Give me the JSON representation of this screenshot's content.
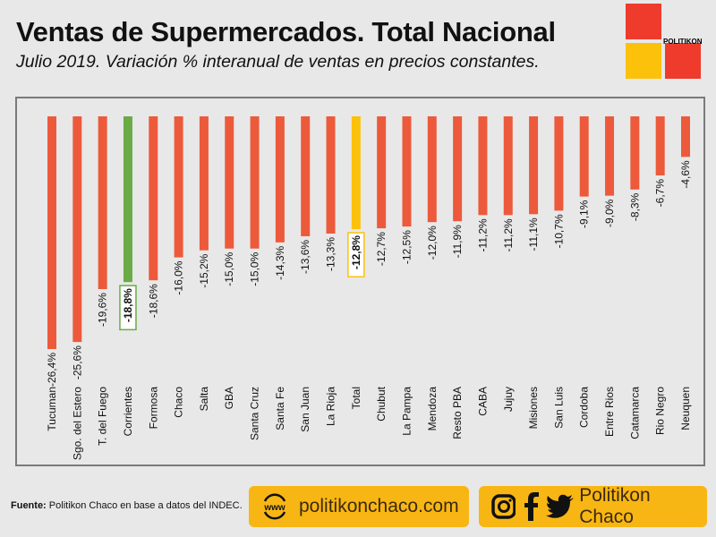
{
  "header": {
    "title": "Ventas de Supermercados. Total Nacional",
    "subtitle": "Julio 2019. Variación % interanual de ventas en precios constantes."
  },
  "logo": {
    "text": "POLITIKON",
    "colors": [
      "#ef3b2c",
      "#fcc10a",
      "#ef3b2c"
    ]
  },
  "chart_data": {
    "type": "bar",
    "orientation": "vertical",
    "categories": [
      "Tucuman",
      "Sgo. del Estero",
      "T. del Fuego",
      "Corrientes",
      "Formosa",
      "Chaco",
      "Salta",
      "GBA",
      "Santa Cruz",
      "Santa Fe",
      "San Juan",
      "La Rioja",
      "Total",
      "Chubut",
      "La Pampa",
      "Mendoza",
      "Resto PBA",
      "CABA",
      "Jujuy",
      "Misiones",
      "San Luis",
      "Cordoba",
      "Entre Rios",
      "Catamarca",
      "Rio Negro",
      "Neuquen"
    ],
    "values": [
      -26.4,
      -25.6,
      -19.6,
      -18.8,
      -18.6,
      -16.0,
      -15.2,
      -15.0,
      -15.0,
      -14.3,
      -13.6,
      -13.3,
      -12.8,
      -12.7,
      -12.5,
      -12.0,
      -11.9,
      -11.2,
      -11.2,
      -11.1,
      -10.7,
      -9.1,
      -9.0,
      -8.3,
      -6.7,
      -4.6
    ],
    "value_labels": [
      "-26,4%",
      "-25,6%",
      "-19,6%",
      "-18,8%",
      "-18,6%",
      "-16,0%",
      "-15,2%",
      "-15,0%",
      "-15,0%",
      "-14,3%",
      "-13,6%",
      "-13,3%",
      "-12,8%",
      "-12,7%",
      "-12,5%",
      "-12,0%",
      "-11,9%",
      "-11,2%",
      "-11,2%",
      "-11,1%",
      "-10,7%",
      "-9,1%",
      "-9,0%",
      "-8,3%",
      "-6,7%",
      "-4,6%"
    ],
    "colors": {
      "default": "#ec5a3b",
      "highlight_corrientes": "#6aab46",
      "highlight_total": "#fcc10a"
    },
    "highlighted": {
      "Corrientes": "#6aab46",
      "Total": "#fcc10a"
    },
    "ylim": [
      -26.4,
      0
    ],
    "grid": false,
    "legend": "none"
  },
  "footer": {
    "source_label": "Fuente:",
    "source_text": " Politikon Chaco en base a datos del INDEC.",
    "www_icon_text": "www",
    "website": "politikonchaco.com",
    "social_name": "Politikon Chaco",
    "icons": [
      "globe-www-icon",
      "instagram-icon",
      "facebook-icon",
      "twitter-icon"
    ]
  }
}
